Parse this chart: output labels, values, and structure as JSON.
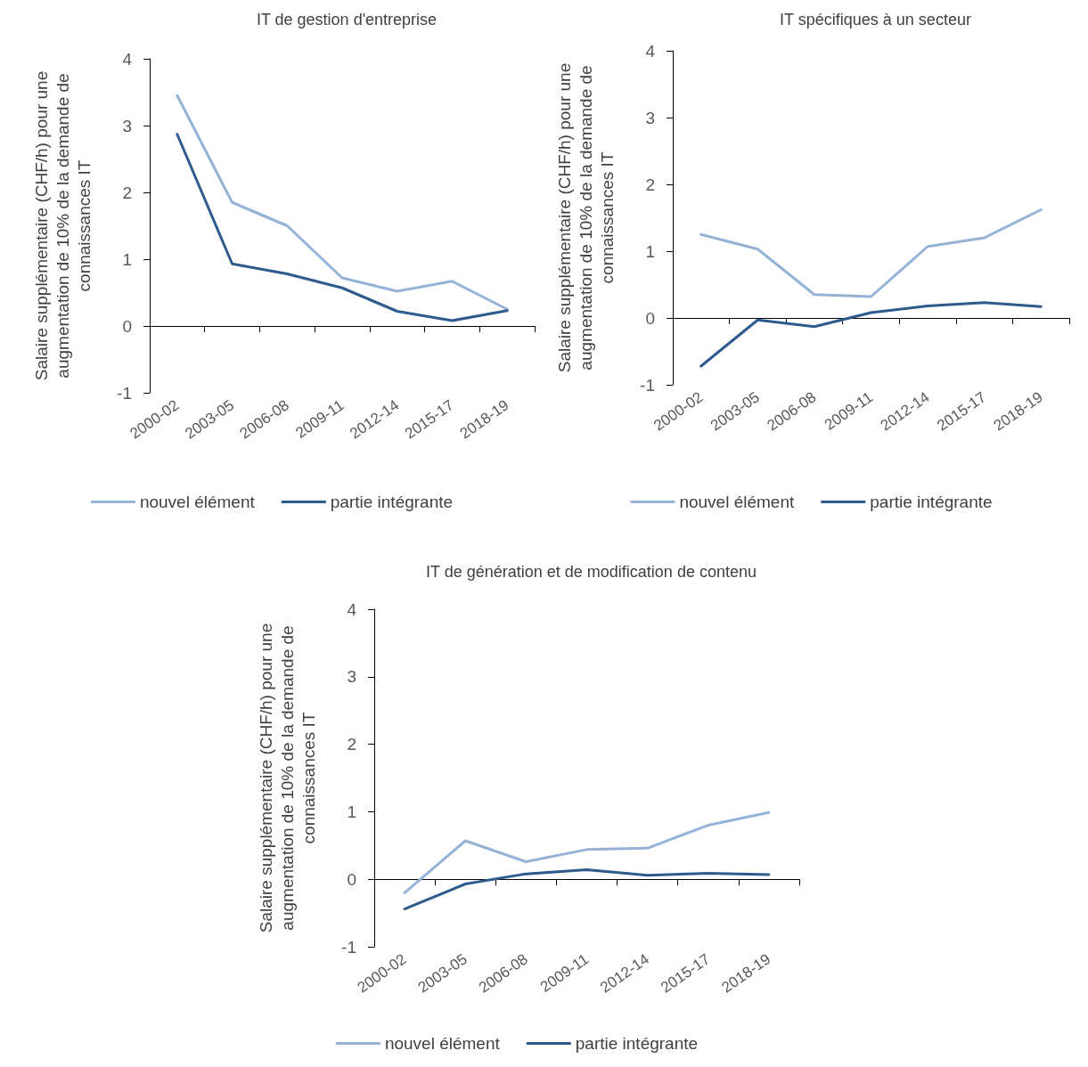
{
  "chart_data": [
    {
      "type": "line",
      "title": "IT de gestion d'entreprise",
      "ylabel": "Salaire supplémentaire (CHF/h) pour une augmentation de 10% de la demande de connaissances IT",
      "categories": [
        "2000-02",
        "2003-05",
        "2006-08",
        "2009-11",
        "2012-14",
        "2015-17",
        "2018-19"
      ],
      "series": [
        {
          "name": "nouvel élément",
          "color": "#95b3d7",
          "values": [
            3.45,
            1.85,
            1.5,
            0.72,
            0.52,
            0.67,
            0.25
          ]
        },
        {
          "name": "partie intégrante",
          "color": "#2e5b8d",
          "values": [
            2.87,
            0.93,
            0.78,
            0.57,
            0.22,
            0.08,
            0.23
          ]
        }
      ],
      "ylim": [
        -1,
        4
      ],
      "yticks": [
        -1,
        0,
        1,
        2,
        3,
        4
      ],
      "legend": "bottom"
    },
    {
      "type": "line",
      "title": "IT spécifiques à un secteur",
      "ylabel": "Salaire supplémentaire (CHF/h) pour une augmentation de 10% de la demande de connaissances IT",
      "categories": [
        "2000-02",
        "2003-05",
        "2006-08",
        "2009-11",
        "2012-14",
        "2015-17",
        "2018-19"
      ],
      "series": [
        {
          "name": "nouvel élément",
          "color": "#95b3d7",
          "values": [
            1.25,
            1.03,
            0.35,
            0.32,
            1.07,
            1.2,
            1.62
          ]
        },
        {
          "name": "partie intégrante",
          "color": "#2e5b8d",
          "values": [
            -0.72,
            -0.03,
            -0.13,
            0.08,
            0.18,
            0.23,
            0.17
          ]
        }
      ],
      "ylim": [
        -1,
        4
      ],
      "yticks": [
        -1,
        0,
        1,
        2,
        3,
        4
      ],
      "legend": "bottom"
    },
    {
      "type": "line",
      "title": "IT de génération et de modification de contenu",
      "ylabel": "Salaire supplémentaire (CHF/h) pour une augmentation de 10% de la demande de connaissances IT",
      "categories": [
        "2000-02",
        "2003-05",
        "2006-08",
        "2009-11",
        "2012-14",
        "2015-17",
        "2018-19"
      ],
      "series": [
        {
          "name": "nouvel élément",
          "color": "#95b3d7",
          "values": [
            -0.2,
            0.57,
            0.26,
            0.44,
            0.46,
            0.8,
            0.99
          ]
        },
        {
          "name": "partie intégrante",
          "color": "#2e5b8d",
          "values": [
            -0.44,
            -0.07,
            0.08,
            0.14,
            0.06,
            0.09,
            0.07
          ]
        }
      ],
      "ylim": [
        -1,
        4
      ],
      "yticks": [
        -1,
        0,
        1,
        2,
        3,
        4
      ],
      "legend": "bottom"
    }
  ]
}
